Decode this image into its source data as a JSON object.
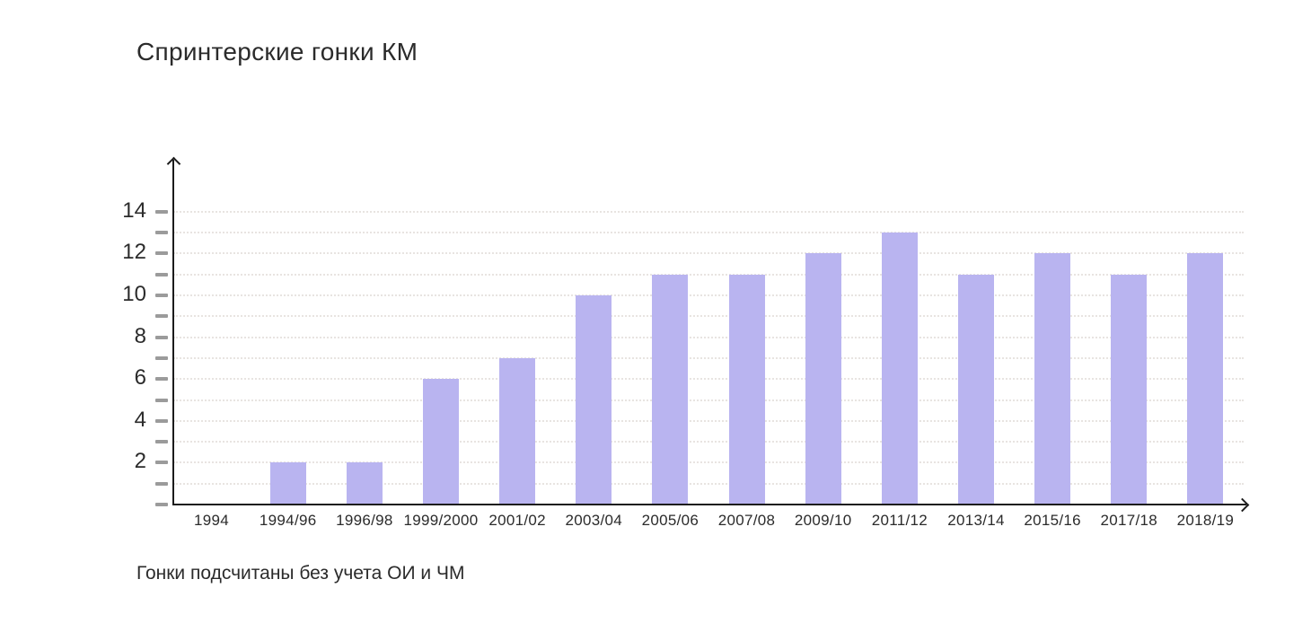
{
  "title": "Спринтерские гонки КМ",
  "footnote": "Гонки подсчитаны без учета ОИ и ЧМ",
  "colors": {
    "bar": "#b9b4f0",
    "axis": "#1c1c1c",
    "tick": "#9b9b9b",
    "gridline": "#e8e4e1",
    "text": "#2b2b2b",
    "background": "#ffffff"
  },
  "chart_data": {
    "type": "bar",
    "title": "Спринтерские гонки КМ",
    "categories": [
      "1994",
      "1994/96",
      "1996/98",
      "1999/2000",
      "2001/02",
      "2003/04",
      "2005/06",
      "2007/08",
      "2009/10",
      "2011/12",
      "2013/14",
      "2015/16",
      "2017/18",
      "2018/19"
    ],
    "values": [
      0,
      2,
      2,
      6,
      7,
      10,
      11,
      11,
      12,
      13,
      11,
      12,
      11,
      12
    ],
    "xlabel": "",
    "ylabel": "",
    "ylim": [
      0,
      15
    ],
    "y_major_ticks": [
      2,
      4,
      6,
      8,
      10,
      12,
      14
    ],
    "y_minor_tick_step": 1,
    "grid": "dotted horizontal line at every integer from 1 to 14",
    "legend": null,
    "axes_style": "black lines with arrowheads up and right",
    "annotation": "Гонки подсчитаны без учета ОИ и ЧМ"
  }
}
